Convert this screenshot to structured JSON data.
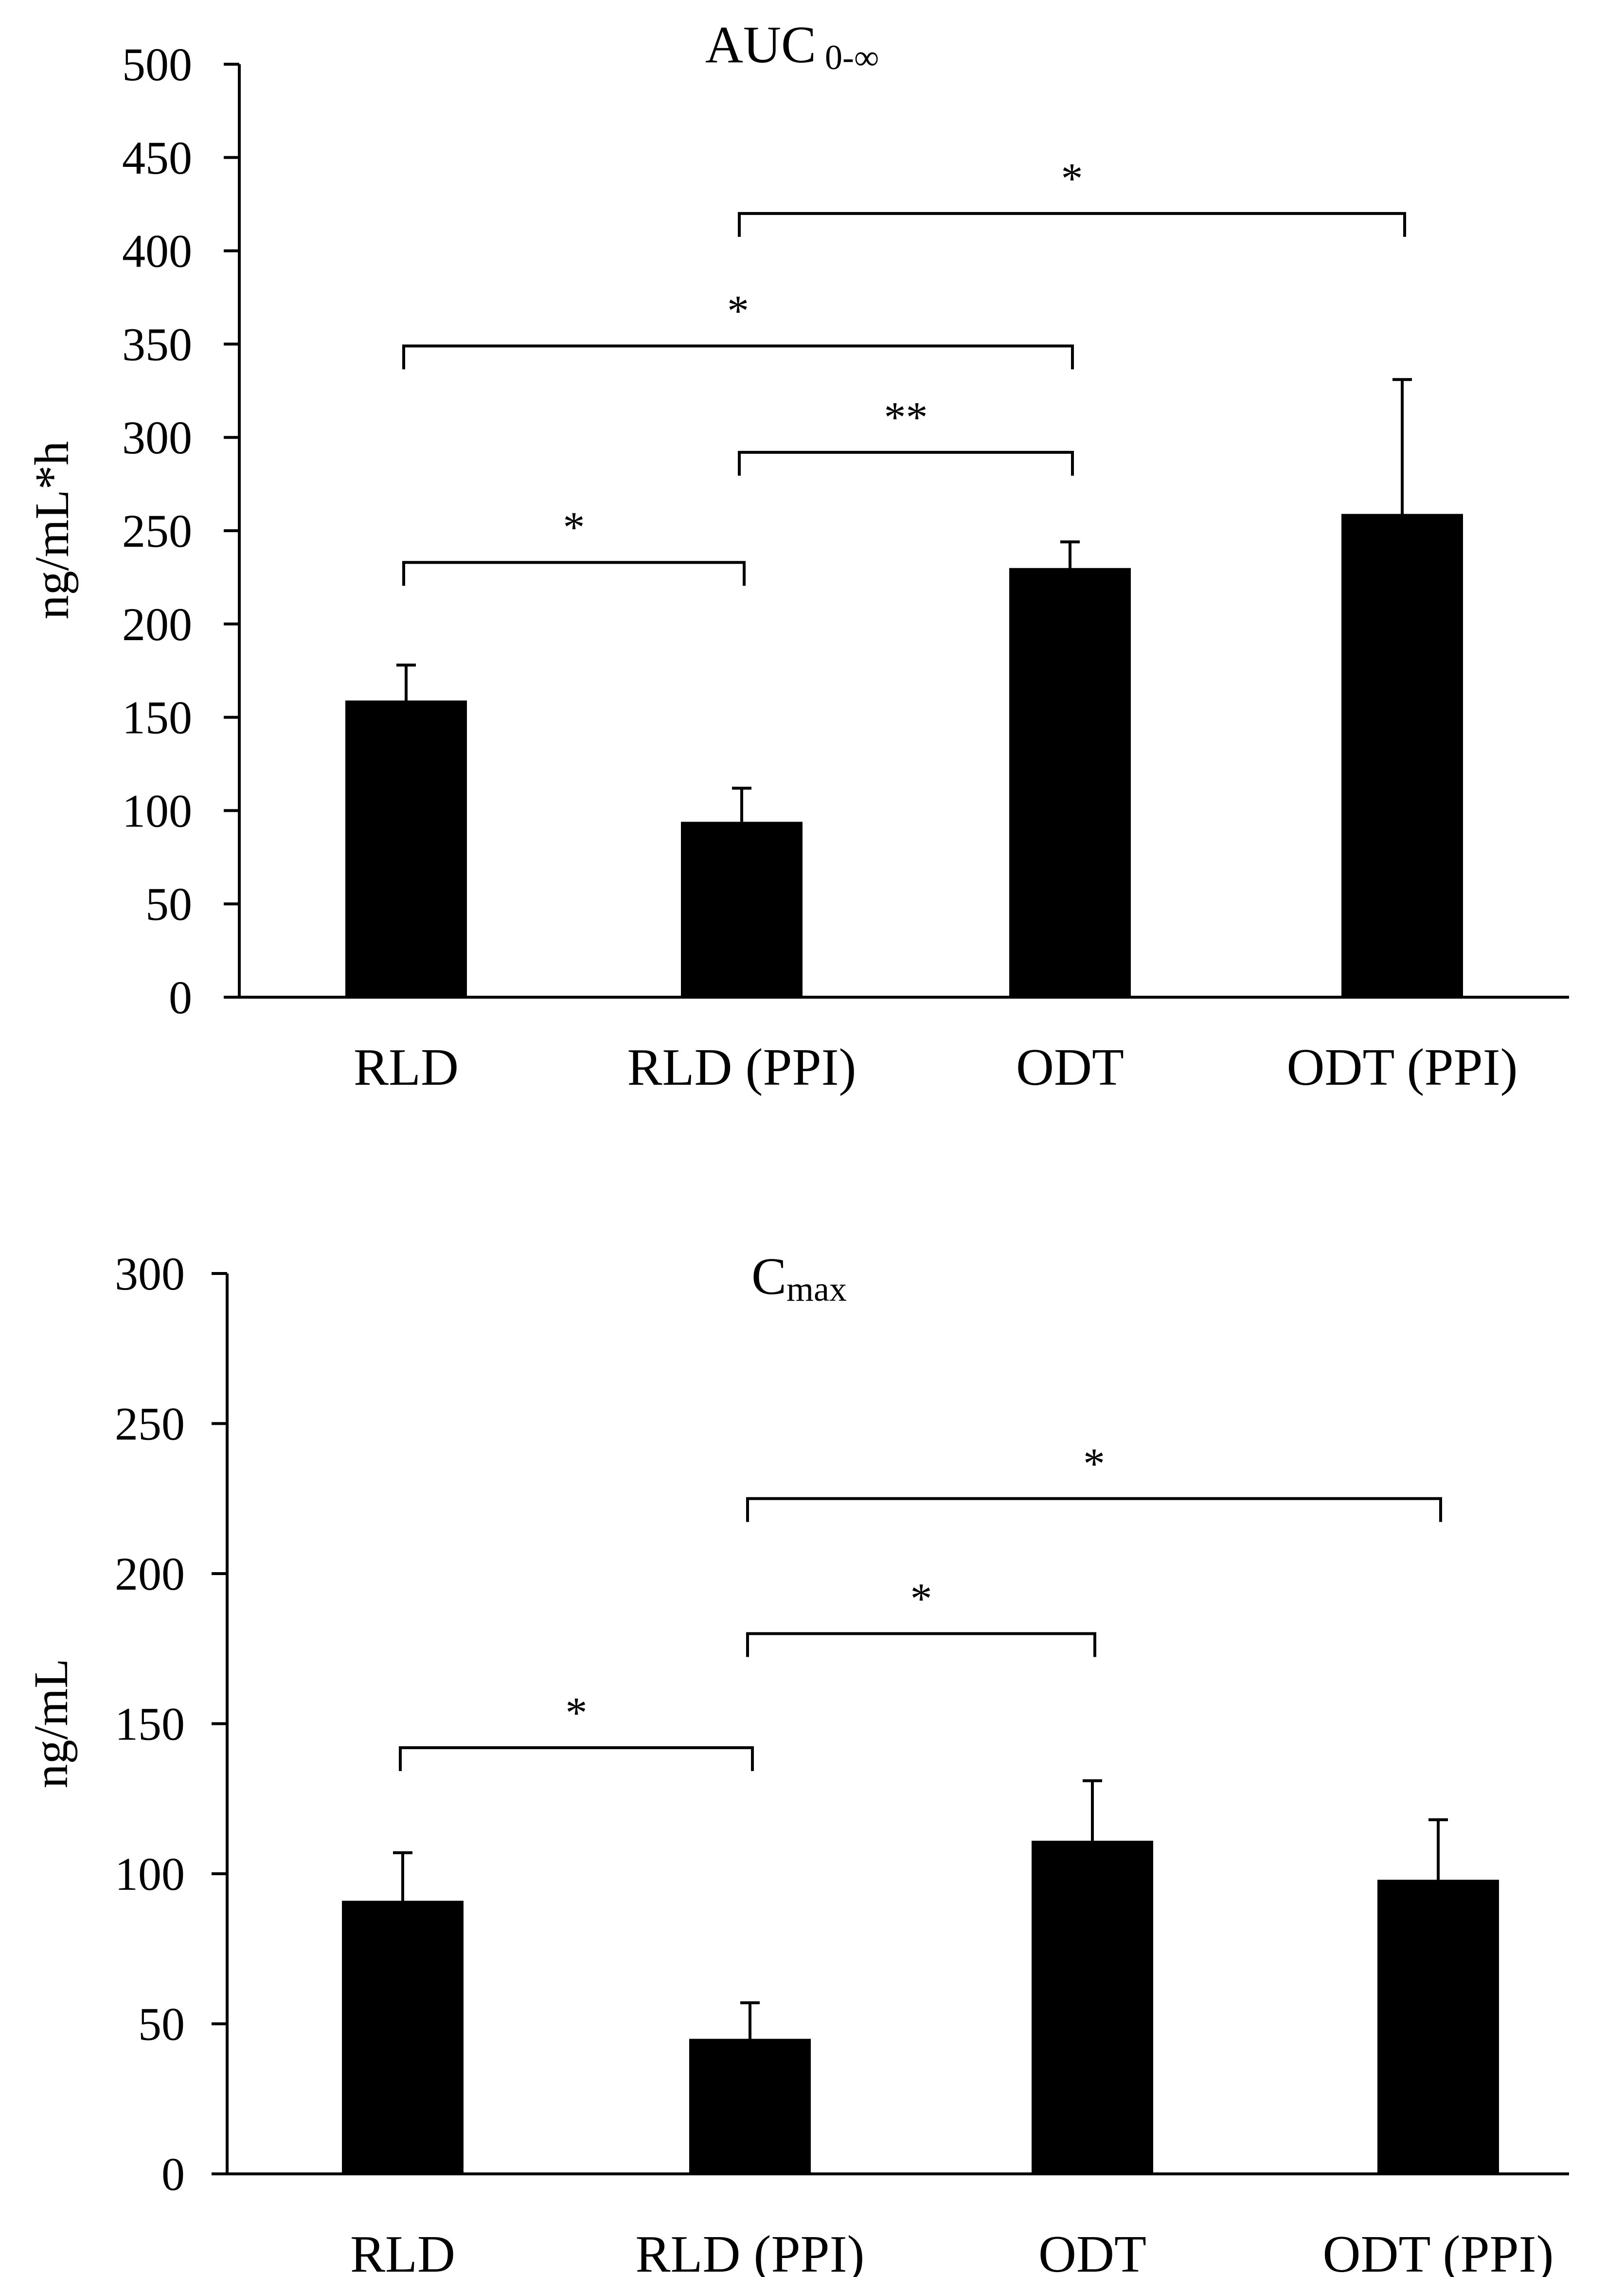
{
  "chart_data": [
    {
      "type": "bar",
      "title": {
        "main": "AUC",
        "subscript": "0-∞"
      },
      "xlabel": "",
      "ylabel": "ng/mL*h",
      "categories": [
        "RLD",
        "RLD (PPI)",
        "ODT",
        "ODT (PPI)"
      ],
      "series": [
        {
          "name": "AUC 0-∞",
          "values": [
            159,
            94,
            230,
            259
          ],
          "error_upper": [
            19,
            18,
            14,
            72
          ]
        }
      ],
      "ylim": [
        0,
        500
      ],
      "yticks": [
        0,
        50,
        100,
        150,
        200,
        250,
        300,
        350,
        400,
        450,
        500
      ],
      "grid": false,
      "significance": [
        {
          "from": 0,
          "to": 1,
          "label": "*",
          "level": 233
        },
        {
          "from": 1,
          "to": 2,
          "label": "**",
          "level": 292
        },
        {
          "from": 0,
          "to": 2,
          "label": "*",
          "level": 349
        },
        {
          "from": 1,
          "to": 3,
          "label": "*",
          "level": 420
        }
      ]
    },
    {
      "type": "bar",
      "title": {
        "main": "C",
        "subscript": "max"
      },
      "xlabel": "",
      "ylabel": "ng/mL",
      "categories": [
        "RLD",
        "RLD (PPI)",
        "ODT",
        "ODT (PPI)"
      ],
      "series": [
        {
          "name": "Cmax",
          "values": [
            91,
            45,
            111,
            98
          ],
          "error_upper": [
            16,
            12,
            20,
            20
          ]
        }
      ],
      "ylim": [
        0,
        300
      ],
      "yticks": [
        0,
        50,
        100,
        150,
        200,
        250,
        300
      ],
      "grid": false,
      "significance": [
        {
          "from": 0,
          "to": 1,
          "label": "*",
          "level": 142
        },
        {
          "from": 1,
          "to": 2,
          "label": "*",
          "level": 180
        },
        {
          "from": 1,
          "to": 3,
          "label": "*",
          "level": 225
        }
      ]
    }
  ],
  "colors": {
    "bar": "#000000",
    "axis": "#000000",
    "background": "#ffffff"
  }
}
